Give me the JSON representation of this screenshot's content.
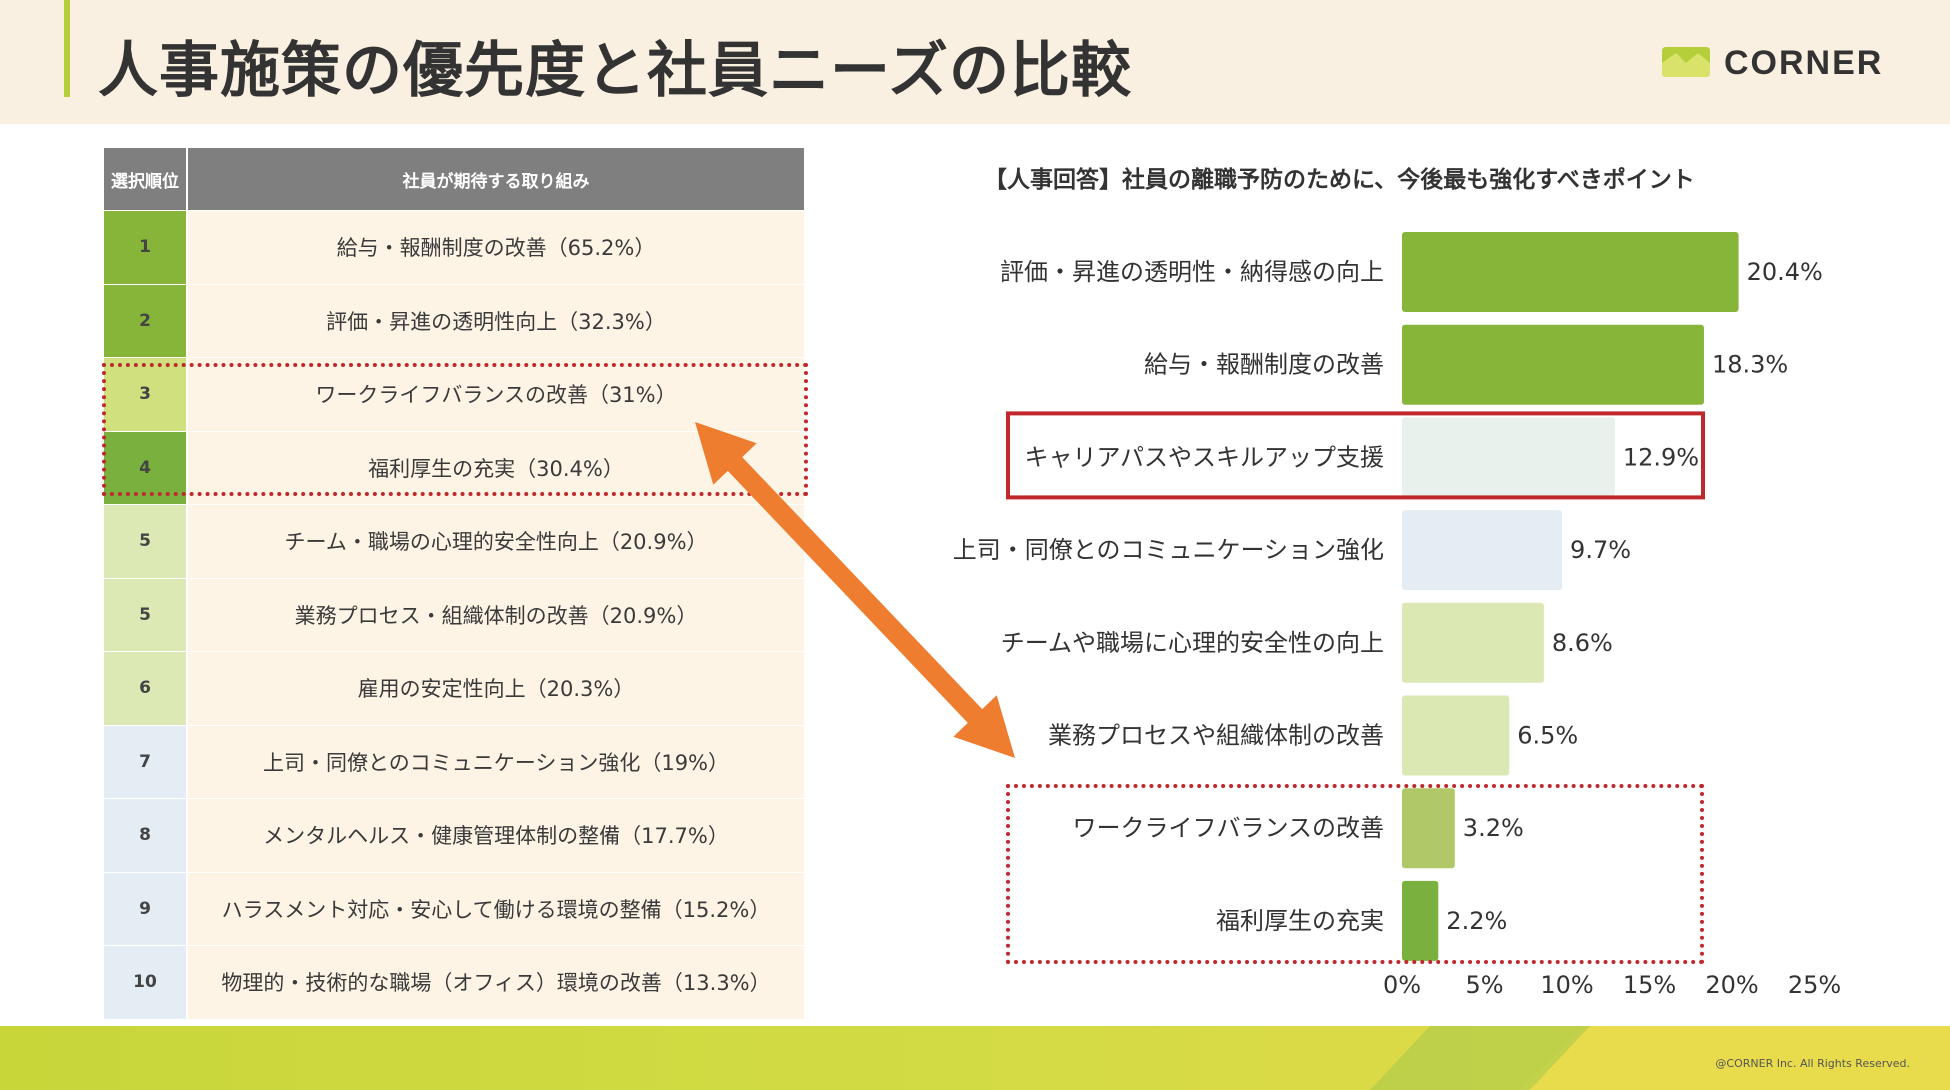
{
  "page": {
    "title": "人事施策の優先度と社員ニーズの比較",
    "logo_text": "CORNER",
    "copyright": "@CORNER Inc. All Rights Reserved."
  },
  "colors": {
    "header_bg": "#faf0e1",
    "accent": "#b5cf3b",
    "table_header": "#7f7f7f",
    "arrow": "#ee7d2f",
    "highlight_red": "#c0282c"
  },
  "table": {
    "header_rank": "選択順位",
    "header_item": "社員が期待する取り組み",
    "rows": [
      {
        "rank": "1",
        "item": "給与・報酬制度の改善（65.2%）",
        "color": "#86b53a"
      },
      {
        "rank": "2",
        "item": "評価・昇進の透明性向上（32.3%）",
        "color": "#86b53a"
      },
      {
        "rank": "3",
        "item": "ワークライフバランスの改善（31%）",
        "color": "#d0e07e"
      },
      {
        "rank": "4",
        "item": "福利厚生の充実（30.4%）",
        "color": "#7ab03d"
      },
      {
        "rank": "5",
        "item": "チーム・職場の心理的安全性向上（20.9%）",
        "color": "#dde9b5"
      },
      {
        "rank": "5",
        "item": "業務プロセス・組織体制の改善（20.9%）",
        "color": "#dde9b5"
      },
      {
        "rank": "6",
        "item": "雇用の安定性向上（20.3%）",
        "color": "#dde9b5"
      },
      {
        "rank": "7",
        "item": "上司・同僚とのコミュニケーション強化（19%）",
        "color": "#e3edf3"
      },
      {
        "rank": "8",
        "item": "メンタルヘルス・健康管理体制の整備（17.7%）",
        "color": "#e3edf3"
      },
      {
        "rank": "9",
        "item": "ハラスメント対応・安心して働ける環境の整備（15.2%）",
        "color": "#e3edf3"
      },
      {
        "rank": "10",
        "item": "物理的・技術的な職場（オフィス）環境の改善（13.3%）",
        "color": "#e3edf3"
      }
    ]
  },
  "chart_data": {
    "type": "bar",
    "orientation": "horizontal",
    "title": "【人事回答】社員の離職予防のために、今後最も強化すべきポイント",
    "categories": [
      "評価・昇進の透明性・納得感の向上",
      "給与・報酬制度の改善",
      "キャリアパスやスキルアップ支援",
      "上司・同僚とのコミュニケーション強化",
      "チームや職場に心理的安全性の向上",
      "業務プロセスや組織体制の改善",
      "ワークライフバランスの改善",
      "福利厚生の充実"
    ],
    "values": [
      20.4,
      18.3,
      12.9,
      9.7,
      8.6,
      6.5,
      3.2,
      2.2
    ],
    "value_labels": [
      "20.4%",
      "18.3%",
      "12.9%",
      "9.7%",
      "8.6%",
      "6.5%",
      "3.2%",
      "2.2%"
    ],
    "bar_colors": [
      "#86b53a",
      "#86b53a",
      "#e8f1ec",
      "#e3edf3",
      "#dce8b3",
      "#dce8b3",
      "#b0c868",
      "#7ab03d"
    ],
    "xlim": [
      0,
      25
    ],
    "xticks": [
      "0%",
      "5%",
      "10%",
      "15%",
      "20%",
      "25%"
    ],
    "grid": false,
    "legend": "none"
  }
}
